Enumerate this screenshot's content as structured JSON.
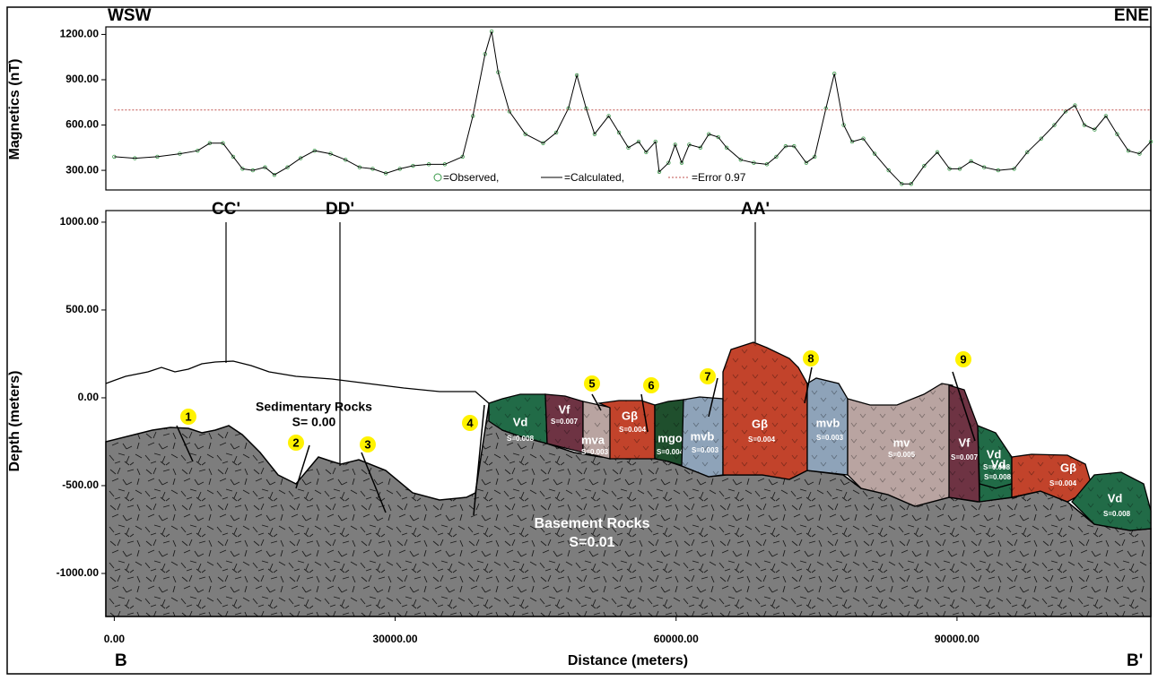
{
  "chart_data": [
    {
      "type": "line",
      "left_label": "WSW",
      "right_label": "ENE",
      "ylabel": "Magnetics (nT)",
      "x": [
        0,
        2200,
        4600,
        7000,
        8900,
        10200,
        11600,
        12700,
        13700,
        14800,
        16100,
        17100,
        18500,
        19900,
        21400,
        23100,
        24700,
        26200,
        27600,
        29000,
        30500,
        31900,
        33600,
        35300,
        37200,
        38300,
        39600,
        40300,
        41000,
        42200,
        43900,
        45800,
        47200,
        48500,
        49400,
        50400,
        51300,
        52800,
        53900,
        54900,
        56000,
        56800,
        57800,
        58200,
        59200,
        59900,
        60600,
        61400,
        62600,
        63500,
        64500,
        65400,
        66900,
        68300,
        69700,
        70700,
        71700,
        72600,
        73900,
        74800,
        76000,
        76900,
        77900,
        78800,
        80000,
        81200,
        82700,
        84100,
        85100,
        86500,
        87900,
        89200,
        90300,
        91500,
        92900,
        94400,
        96100,
        97500,
        99000,
        100400,
        101600,
        102600,
        103600,
        104700,
        105900,
        107100,
        108300,
        109500,
        110700
      ],
      "series": [
        {
          "name": "=Observed,",
          "color": "#3a9a4a",
          "values": [
            390,
            380,
            390,
            410,
            430,
            480,
            480,
            390,
            310,
            300,
            320,
            270,
            320,
            380,
            430,
            410,
            370,
            320,
            310,
            280,
            310,
            330,
            340,
            340,
            390,
            660,
            1070,
            1220,
            950,
            690,
            540,
            480,
            550,
            710,
            930,
            710,
            540,
            660,
            550,
            450,
            490,
            420,
            490,
            290,
            350,
            470,
            350,
            470,
            450,
            540,
            520,
            450,
            370,
            350,
            340,
            390,
            460,
            460,
            350,
            390,
            710,
            940,
            600,
            490,
            510,
            410,
            300,
            210,
            210,
            330,
            420,
            310,
            310,
            360,
            320,
            300,
            310,
            420,
            510,
            600,
            690,
            730,
            600,
            570,
            660,
            540,
            430,
            410,
            490
          ]
        },
        {
          "name": "=Calculated,",
          "color": "#000000",
          "values": [
            390,
            380,
            390,
            410,
            430,
            480,
            480,
            390,
            310,
            300,
            320,
            270,
            320,
            380,
            430,
            410,
            370,
            320,
            310,
            280,
            310,
            330,
            340,
            340,
            390,
            660,
            1070,
            1220,
            950,
            690,
            540,
            480,
            550,
            710,
            930,
            710,
            540,
            660,
            550,
            450,
            490,
            420,
            490,
            290,
            350,
            470,
            350,
            470,
            450,
            540,
            520,
            450,
            370,
            350,
            340,
            390,
            460,
            460,
            350,
            390,
            710,
            940,
            600,
            490,
            510,
            410,
            300,
            210,
            210,
            330,
            420,
            310,
            310,
            360,
            320,
            300,
            310,
            420,
            510,
            600,
            690,
            730,
            600,
            570,
            660,
            540,
            430,
            410,
            490
          ]
        },
        {
          "name": "=Error 0.97",
          "color": "#c0504d",
          "values": [
            700,
            700,
            700,
            700,
            700,
            700,
            700,
            700,
            700,
            700,
            700,
            700,
            700,
            700,
            700,
            700,
            700,
            700,
            700,
            700,
            700,
            700,
            700,
            700,
            700,
            700,
            700,
            700,
            700,
            700,
            700,
            700,
            700,
            700,
            700,
            700,
            700,
            700,
            700,
            700,
            700,
            700,
            700,
            700,
            700,
            700,
            700,
            700,
            700,
            700,
            700,
            700,
            700,
            700,
            700,
            700,
            700,
            700,
            700,
            700,
            700,
            700,
            700,
            700,
            700,
            700,
            700,
            700,
            700,
            700,
            700,
            700,
            700,
            700,
            700,
            700,
            700,
            700,
            700,
            700,
            700,
            700,
            700,
            700,
            700,
            700,
            700,
            700,
            700
          ]
        }
      ],
      "xlim": [
        -900,
        110700
      ],
      "ylim": [
        170,
        1250
      ],
      "yticks": [
        {
          "value": 300,
          "label": "300.00"
        },
        {
          "value": 600,
          "label": "600.00"
        },
        {
          "value": 900,
          "label": "900.00"
        },
        {
          "value": 1200,
          "label": "1200.00"
        }
      ]
    },
    {
      "type": "cross-section",
      "ylabel": "Depth (meters)",
      "xlabel": "Distance (meters)",
      "start_label": "B",
      "end_label": "B'",
      "xlim": [
        -900,
        110700
      ],
      "ylim": [
        -1245,
        1066
      ],
      "xticks": [
        {
          "value": 0,
          "label": "0.00"
        },
        {
          "value": 30000,
          "label": "30000.00"
        },
        {
          "value": 60000,
          "label": "60000.00"
        },
        {
          "value": 90000,
          "label": "90000.00"
        }
      ],
      "yticks": [
        {
          "value": -1000,
          "label": "-1000.00"
        },
        {
          "value": -500,
          "label": "-500.00"
        },
        {
          "value": 0,
          "label": "0.00"
        },
        {
          "value": 500,
          "label": "500.00"
        },
        {
          "value": 1000,
          "label": "1000.00"
        }
      ],
      "profiles": [
        "CC'",
        "DD'",
        "AA'"
      ],
      "faults": [
        "1",
        "2",
        "3",
        "4",
        "5",
        "6",
        "7",
        "8",
        "9"
      ],
      "sedimentary": {
        "name": "Sedimentary Rocks",
        "s": "S= 0.00"
      },
      "basement": {
        "name": "Basement Rocks",
        "s": "S=0.01"
      },
      "bodies": [
        {
          "name": "Vd",
          "s": "S=0.008",
          "color": "#216b47"
        },
        {
          "name": "Vf",
          "s": "S=0.007",
          "color": "#6e3343"
        },
        {
          "name": "mva",
          "s": "S=0.003",
          "color": "#b9a4a1"
        },
        {
          "name": "Gβ",
          "s": "S=0.004",
          "color": "#c2432b"
        },
        {
          "name": "mgo",
          "s": "S=0.004",
          "color": "#1f4f2d"
        },
        {
          "name": "mvb",
          "s": "S=0.003",
          "color": "#8ea3b9"
        },
        {
          "name": "Gβ",
          "s": "S=0.004",
          "color": "#c2432b"
        },
        {
          "name": "mvb",
          "s": "S=0.003",
          "color": "#8ea3b9"
        },
        {
          "name": "mv",
          "s": "S=0.005",
          "color": "#b9a4a1"
        },
        {
          "name": "Vf",
          "s": "S=0.007",
          "color": "#6e3343"
        },
        {
          "name": "Vd",
          "s": "S=0.008",
          "color": "#216b47"
        },
        {
          "name": "Vd",
          "s": "S=0.008",
          "color": "#216b47"
        },
        {
          "name": "Gβ",
          "s": "S=0.004",
          "color": "#c2432b"
        },
        {
          "name": "Vd",
          "s": "S=0.008",
          "color": "#216b47"
        }
      ]
    }
  ]
}
